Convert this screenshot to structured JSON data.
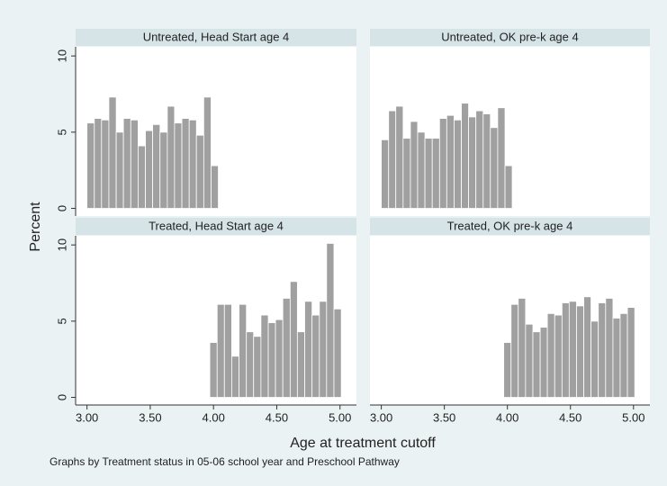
{
  "chart_data": [
    {
      "type": "histogram",
      "title": "Untreated, Head Start age 4",
      "color": "#a0a0a0",
      "bins": [
        3.0,
        3.058,
        3.115,
        3.173,
        3.231,
        3.288,
        3.346,
        3.404,
        3.462,
        3.519,
        3.577,
        3.635,
        3.692,
        3.75,
        3.808,
        3.865,
        3.923,
        3.981,
        4.038
      ],
      "values": [
        5.6,
        5.9,
        5.8,
        7.3,
        5.0,
        5.9,
        5.8,
        4.1,
        5.1,
        5.5,
        5.0,
        6.7,
        5.6,
        5.9,
        5.8,
        4.8,
        7.3,
        2.8
      ],
      "xlim": [
        2.91,
        5.13
      ],
      "ylim": [
        -0.5,
        10.6
      ],
      "yticks": [
        0,
        5,
        10
      ]
    },
    {
      "type": "histogram",
      "title": "Untreated, OK pre-k age 4",
      "color": "#a0a0a0",
      "bins": [
        3.0,
        3.058,
        3.115,
        3.173,
        3.231,
        3.288,
        3.346,
        3.404,
        3.462,
        3.519,
        3.577,
        3.635,
        3.692,
        3.75,
        3.808,
        3.865,
        3.923,
        3.981,
        4.038
      ],
      "values": [
        4.5,
        6.4,
        6.7,
        4.6,
        5.7,
        5.0,
        4.6,
        4.6,
        5.9,
        6.1,
        5.8,
        6.9,
        6.0,
        6.4,
        6.2,
        5.3,
        6.6,
        2.8
      ],
      "xlim": [
        2.91,
        5.13
      ],
      "ylim": [
        -0.5,
        10.6
      ]
    },
    {
      "type": "histogram",
      "title": "Treated, Head Start age 4",
      "color": "#a0a0a0",
      "bins": [
        3.971,
        4.029,
        4.086,
        4.144,
        4.202,
        4.26,
        4.317,
        4.375,
        4.433,
        4.49,
        4.548,
        4.606,
        4.663,
        4.721,
        4.779,
        4.837,
        4.894,
        4.952,
        5.01
      ],
      "values": [
        3.6,
        6.1,
        6.1,
        2.7,
        6.1,
        4.3,
        4.0,
        5.4,
        4.9,
        5.1,
        6.5,
        7.6,
        4.3,
        6.3,
        5.4,
        6.3,
        10.1,
        5.8
      ],
      "xlim": [
        2.91,
        5.13
      ],
      "ylim": [
        -0.5,
        10.6
      ],
      "yticks": [
        0,
        5,
        10
      ],
      "xticks": [
        {
          "value": 3,
          "label": "3.00"
        },
        {
          "value": 3.5,
          "label": "3.50"
        },
        {
          "value": 4,
          "label": "4.00"
        },
        {
          "value": 4.5,
          "label": "4.50"
        },
        {
          "value": 5,
          "label": "5.00"
        }
      ]
    },
    {
      "type": "histogram",
      "title": "Treated, OK pre-k age 4",
      "color": "#a0a0a0",
      "bins": [
        3.971,
        4.029,
        4.086,
        4.144,
        4.202,
        4.26,
        4.317,
        4.375,
        4.433,
        4.49,
        4.548,
        4.606,
        4.663,
        4.721,
        4.779,
        4.837,
        4.894,
        4.952,
        5.01
      ],
      "values": [
        3.6,
        6.1,
        6.5,
        4.8,
        4.3,
        4.6,
        5.5,
        5.4,
        6.2,
        6.3,
        6.0,
        6.6,
        5.0,
        6.2,
        6.5,
        5.2,
        5.5,
        5.9
      ],
      "xlim": [
        2.91,
        5.13
      ],
      "ylim": [
        -0.5,
        10.6
      ],
      "xticks": [
        {
          "value": 3,
          "label": "3.00"
        },
        {
          "value": 3.5,
          "label": "3.50"
        },
        {
          "value": 4,
          "label": "4.00"
        },
        {
          "value": 4.5,
          "label": "4.50"
        },
        {
          "value": 5,
          "label": "5.00"
        }
      ]
    }
  ],
  "ylabel": "Percent",
  "xlabel": "Age at treatment cutoff",
  "note": "Graphs by Treatment status in 05-06 school year and Preschool Pathway"
}
